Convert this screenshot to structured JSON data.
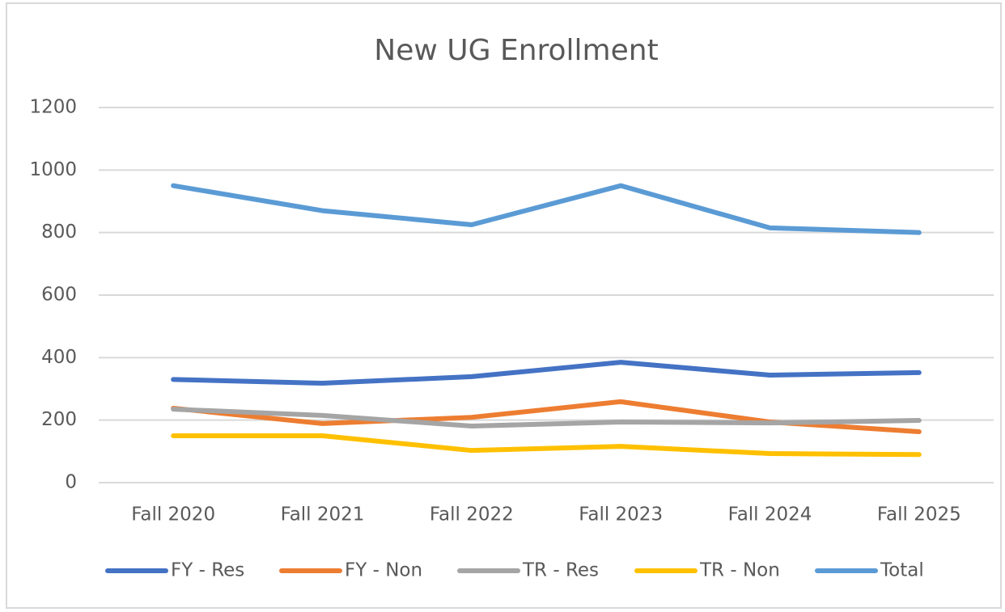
{
  "chart_data": {
    "type": "line",
    "title": "New UG Enrollment",
    "categories": [
      "Fall 2020",
      "Fall 2021",
      "Fall 2022",
      "Fall 2023",
      "Fall 2024",
      "Fall 2025"
    ],
    "series": [
      {
        "name": "FY - Res",
        "color": "#4472c4",
        "values": [
          330,
          318,
          339,
          385,
          344,
          352
        ]
      },
      {
        "name": "FY - Non",
        "color": "#ed7d31",
        "values": [
          238,
          189,
          209,
          259,
          194,
          163
        ]
      },
      {
        "name": "TR - Res",
        "color": "#a5a5a5",
        "values": [
          235,
          215,
          181,
          194,
          191,
          199
        ]
      },
      {
        "name": "TR - Non",
        "color": "#ffc000",
        "values": [
          150,
          150,
          103,
          116,
          93,
          90
        ]
      },
      {
        "name": "Total",
        "color": "#5b9bd5",
        "values": [
          950,
          870,
          825,
          950,
          815,
          800
        ]
      }
    ],
    "ylim": [
      0,
      1200
    ],
    "yticks": [
      0,
      200,
      400,
      600,
      800,
      1000,
      1200
    ],
    "grid": true,
    "legend": "bottom"
  }
}
